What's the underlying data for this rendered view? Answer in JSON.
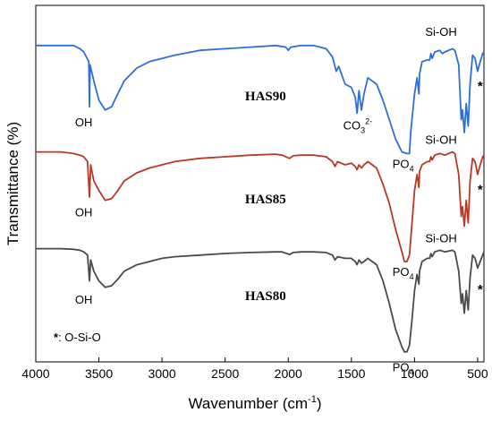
{
  "chart_data": {
    "type": "line",
    "xlabel": "Wavenumber (cm",
    "xlabel_sup": "-1",
    "xlabel_end": ")",
    "ylabel": "Transmittance (%)",
    "xlim": [
      4000,
      450
    ],
    "x_reversed": true,
    "xticks": [
      4000,
      3500,
      3000,
      2500,
      2000,
      1500,
      1000,
      500
    ],
    "yticks_shown": false,
    "grid": false,
    "legend": "none",
    "series": [
      {
        "name": "HAS90",
        "color": "#2E6FD8",
        "points": [
          [
            4000,
            0.97
          ],
          [
            3900,
            0.97
          ],
          [
            3800,
            0.97
          ],
          [
            3700,
            0.97
          ],
          [
            3650,
            0.96
          ],
          [
            3620,
            0.95
          ],
          [
            3580,
            0.92
          ],
          [
            3575,
            0.78
          ],
          [
            3570,
            0.91
          ],
          [
            3540,
            0.86
          ],
          [
            3500,
            0.8
          ],
          [
            3450,
            0.77
          ],
          [
            3400,
            0.78
          ],
          [
            3350,
            0.82
          ],
          [
            3300,
            0.86
          ],
          [
            3200,
            0.9
          ],
          [
            3100,
            0.92
          ],
          [
            3000,
            0.93
          ],
          [
            2900,
            0.94
          ],
          [
            2700,
            0.955
          ],
          [
            2500,
            0.96
          ],
          [
            2300,
            0.965
          ],
          [
            2100,
            0.97
          ],
          [
            2020,
            0.965
          ],
          [
            2000,
            0.955
          ],
          [
            1980,
            0.965
          ],
          [
            1900,
            0.97
          ],
          [
            1800,
            0.97
          ],
          [
            1700,
            0.96
          ],
          [
            1650,
            0.935
          ],
          [
            1620,
            0.89
          ],
          [
            1600,
            0.905
          ],
          [
            1550,
            0.85
          ],
          [
            1500,
            0.84
          ],
          [
            1470,
            0.81
          ],
          [
            1455,
            0.76
          ],
          [
            1440,
            0.83
          ],
          [
            1420,
            0.77
          ],
          [
            1400,
            0.82
          ],
          [
            1370,
            0.87
          ],
          [
            1300,
            0.85
          ],
          [
            1250,
            0.8
          ],
          [
            1200,
            0.74
          ],
          [
            1150,
            0.68
          ],
          [
            1100,
            0.64
          ],
          [
            1060,
            0.635
          ],
          [
            1040,
            0.635
          ],
          [
            1030,
            0.7
          ],
          [
            1000,
            0.82
          ],
          [
            980,
            0.87
          ],
          [
            965,
            0.82
          ],
          [
            960,
            0.88
          ],
          [
            940,
            0.92
          ],
          [
            900,
            0.925
          ],
          [
            880,
            0.925
          ],
          [
            870,
            0.945
          ],
          [
            860,
            0.93
          ],
          [
            840,
            0.95
          ],
          [
            800,
            0.955
          ],
          [
            780,
            0.945
          ],
          [
            760,
            0.95
          ],
          [
            700,
            0.96
          ],
          [
            680,
            0.955
          ],
          [
            650,
            0.91
          ],
          [
            630,
            0.74
          ],
          [
            620,
            0.77
          ],
          [
            605,
            0.7
          ],
          [
            590,
            0.79
          ],
          [
            575,
            0.72
          ],
          [
            560,
            0.85
          ],
          [
            540,
            0.94
          ],
          [
            520,
            0.93
          ],
          [
            500,
            0.89
          ],
          [
            480,
            0.92
          ],
          [
            460,
            0.945
          ],
          [
            450,
            0.95
          ]
        ]
      },
      {
        "name": "HAS85",
        "color": "#B8392A",
        "points": [
          [
            4000,
            0.64
          ],
          [
            3900,
            0.64
          ],
          [
            3800,
            0.64
          ],
          [
            3700,
            0.635
          ],
          [
            3650,
            0.63
          ],
          [
            3620,
            0.625
          ],
          [
            3590,
            0.61
          ],
          [
            3575,
            0.5
          ],
          [
            3565,
            0.6
          ],
          [
            3540,
            0.55
          ],
          [
            3500,
            0.52
          ],
          [
            3450,
            0.49
          ],
          [
            3400,
            0.495
          ],
          [
            3350,
            0.52
          ],
          [
            3300,
            0.55
          ],
          [
            3200,
            0.575
          ],
          [
            3100,
            0.59
          ],
          [
            3000,
            0.6
          ],
          [
            2900,
            0.61
          ],
          [
            2700,
            0.62
          ],
          [
            2500,
            0.625
          ],
          [
            2300,
            0.63
          ],
          [
            2100,
            0.633
          ],
          [
            2050,
            0.63
          ],
          [
            1990,
            0.62
          ],
          [
            1960,
            0.628
          ],
          [
            1900,
            0.63
          ],
          [
            1800,
            0.63
          ],
          [
            1700,
            0.625
          ],
          [
            1650,
            0.61
          ],
          [
            1630,
            0.595
          ],
          [
            1610,
            0.61
          ],
          [
            1550,
            0.6
          ],
          [
            1500,
            0.605
          ],
          [
            1470,
            0.595
          ],
          [
            1455,
            0.585
          ],
          [
            1440,
            0.6
          ],
          [
            1420,
            0.59
          ],
          [
            1400,
            0.6
          ],
          [
            1370,
            0.61
          ],
          [
            1300,
            0.59
          ],
          [
            1250,
            0.54
          ],
          [
            1200,
            0.48
          ],
          [
            1150,
            0.4
          ],
          [
            1100,
            0.33
          ],
          [
            1080,
            0.3
          ],
          [
            1060,
            0.3
          ],
          [
            1040,
            0.32
          ],
          [
            1020,
            0.42
          ],
          [
            1000,
            0.52
          ],
          [
            980,
            0.57
          ],
          [
            965,
            0.53
          ],
          [
            960,
            0.58
          ],
          [
            940,
            0.6
          ],
          [
            900,
            0.61
          ],
          [
            880,
            0.61
          ],
          [
            870,
            0.625
          ],
          [
            860,
            0.615
          ],
          [
            840,
            0.63
          ],
          [
            800,
            0.635
          ],
          [
            760,
            0.63
          ],
          [
            700,
            0.64
          ],
          [
            680,
            0.635
          ],
          [
            650,
            0.57
          ],
          [
            630,
            0.44
          ],
          [
            620,
            0.47
          ],
          [
            605,
            0.41
          ],
          [
            590,
            0.49
          ],
          [
            575,
            0.42
          ],
          [
            560,
            0.55
          ],
          [
            540,
            0.62
          ],
          [
            520,
            0.61
          ],
          [
            500,
            0.57
          ],
          [
            480,
            0.6
          ],
          [
            460,
            0.625
          ],
          [
            450,
            0.63
          ]
        ]
      },
      {
        "name": "HAS80",
        "color": "#4A4A4A",
        "points": [
          [
            4000,
            0.34
          ],
          [
            3900,
            0.34
          ],
          [
            3800,
            0.34
          ],
          [
            3700,
            0.338
          ],
          [
            3650,
            0.335
          ],
          [
            3620,
            0.33
          ],
          [
            3590,
            0.32
          ],
          [
            3575,
            0.24
          ],
          [
            3565,
            0.305
          ],
          [
            3540,
            0.27
          ],
          [
            3500,
            0.24
          ],
          [
            3450,
            0.22
          ],
          [
            3400,
            0.225
          ],
          [
            3350,
            0.245
          ],
          [
            3300,
            0.27
          ],
          [
            3200,
            0.29
          ],
          [
            3100,
            0.3
          ],
          [
            3000,
            0.31
          ],
          [
            2900,
            0.315
          ],
          [
            2700,
            0.32
          ],
          [
            2500,
            0.325
          ],
          [
            2300,
            0.328
          ],
          [
            2100,
            0.33
          ],
          [
            2050,
            0.33
          ],
          [
            1990,
            0.322
          ],
          [
            1960,
            0.328
          ],
          [
            1900,
            0.33
          ],
          [
            1800,
            0.33
          ],
          [
            1700,
            0.328
          ],
          [
            1650,
            0.32
          ],
          [
            1630,
            0.305
          ],
          [
            1610,
            0.315
          ],
          [
            1550,
            0.31
          ],
          [
            1500,
            0.31
          ],
          [
            1470,
            0.3
          ],
          [
            1455,
            0.29
          ],
          [
            1440,
            0.305
          ],
          [
            1420,
            0.295
          ],
          [
            1400,
            0.3
          ],
          [
            1370,
            0.31
          ],
          [
            1300,
            0.29
          ],
          [
            1250,
            0.24
          ],
          [
            1200,
            0.17
          ],
          [
            1150,
            0.09
          ],
          [
            1100,
            0.035
          ],
          [
            1080,
            0.02
          ],
          [
            1060,
            0.02
          ],
          [
            1040,
            0.04
          ],
          [
            1020,
            0.12
          ],
          [
            1000,
            0.21
          ],
          [
            980,
            0.26
          ],
          [
            965,
            0.23
          ],
          [
            960,
            0.27
          ],
          [
            940,
            0.3
          ],
          [
            900,
            0.31
          ],
          [
            880,
            0.31
          ],
          [
            870,
            0.325
          ],
          [
            860,
            0.315
          ],
          [
            840,
            0.33
          ],
          [
            800,
            0.335
          ],
          [
            760,
            0.33
          ],
          [
            700,
            0.335
          ],
          [
            680,
            0.33
          ],
          [
            650,
            0.27
          ],
          [
            630,
            0.17
          ],
          [
            620,
            0.2
          ],
          [
            605,
            0.14
          ],
          [
            590,
            0.21
          ],
          [
            575,
            0.15
          ],
          [
            560,
            0.25
          ],
          [
            540,
            0.32
          ],
          [
            520,
            0.31
          ],
          [
            500,
            0.28
          ],
          [
            480,
            0.3
          ],
          [
            460,
            0.32
          ],
          [
            450,
            0.33
          ]
        ]
      }
    ],
    "annotations": {
      "sample_labels": [
        {
          "text": "HAS90",
          "x": 2180,
          "y": 0.8
        },
        {
          "text": "HAS85",
          "x": 2180,
          "y": 0.48
        },
        {
          "text": "HAS80",
          "x": 2180,
          "y": 0.18
        }
      ],
      "oh_labels": [
        {
          "text": "OH",
          "x": 3620,
          "y": 0.72
        },
        {
          "text": "OH",
          "x": 3620,
          "y": 0.44
        },
        {
          "text": "OH",
          "x": 3620,
          "y": 0.17
        }
      ],
      "sioh_labels": [
        {
          "text": "Si-OH",
          "x": 790,
          "y": 1.0
        },
        {
          "text": "Si-OH",
          "x": 790,
          "y": 0.665
        },
        {
          "text": "Si-OH",
          "x": 790,
          "y": 0.36
        }
      ],
      "po4_labels": [
        {
          "base": "PO",
          "sub": "4",
          "x": 1090,
          "y": 0.59
        },
        {
          "base": "PO",
          "sub": "4",
          "x": 1090,
          "y": 0.255
        },
        {
          "base": "PO",
          "sub": "4",
          "x": 1090,
          "y": -0.04
        }
      ],
      "co3_label": {
        "base": "CO",
        "sub": "3",
        "sup": "2-",
        "x": 1450,
        "y": 0.71
      },
      "star_labels": [
        {
          "text": "*",
          "x": 480,
          "y": 0.83
        },
        {
          "text": "*",
          "x": 480,
          "y": 0.51
        },
        {
          "text": "*",
          "x": 480,
          "y": 0.2
        }
      ],
      "footnote": {
        "star": "*",
        "text": ": O-Si-O"
      }
    }
  }
}
